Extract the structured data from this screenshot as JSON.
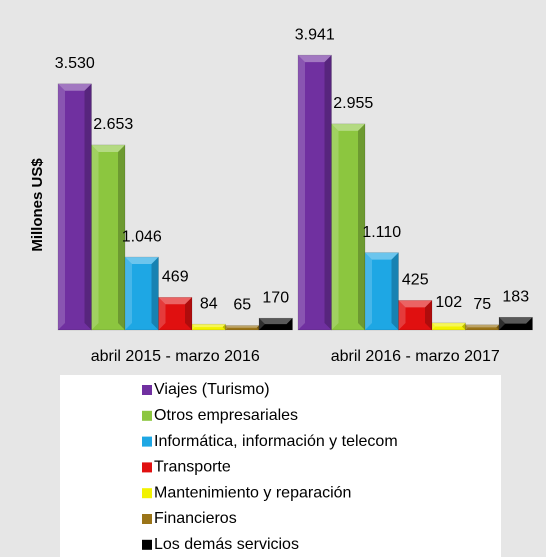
{
  "chart_data": {
    "type": "bar",
    "y_label": "Millones US$",
    "categories": [
      "abril 2015 - marzo 2016",
      "abril 2016 - marzo 2017"
    ],
    "series": [
      {
        "name": "Viajes (Turismo)",
        "color": "#7030a0",
        "values": [
          3530,
          3941
        ],
        "value_labels": [
          "3.530",
          "3.941"
        ]
      },
      {
        "name": "Otros empresariales",
        "color": "#8cc63f",
        "values": [
          2653,
          2955
        ],
        "value_labels": [
          "2.653",
          "2.955"
        ]
      },
      {
        "name": "Informática, información y telecom",
        "color": "#1ea7e4",
        "values": [
          1046,
          1110
        ],
        "value_labels": [
          "1.046",
          "1.110"
        ]
      },
      {
        "name": "Transporte",
        "color": "#e01010",
        "values": [
          469,
          425
        ]
      },
      {
        "name": "Mantenimiento y reparación",
        "color": "#f2f200",
        "values": [
          84,
          102
        ]
      },
      {
        "name": "Financieros",
        "color": "#9a7418",
        "values": [
          65,
          75
        ]
      },
      {
        "name": "Los demás servicios",
        "color": "#000000",
        "values": [
          170,
          183
        ]
      }
    ],
    "ylim": [
      0,
      4000
    ],
    "legend": "bottom"
  }
}
